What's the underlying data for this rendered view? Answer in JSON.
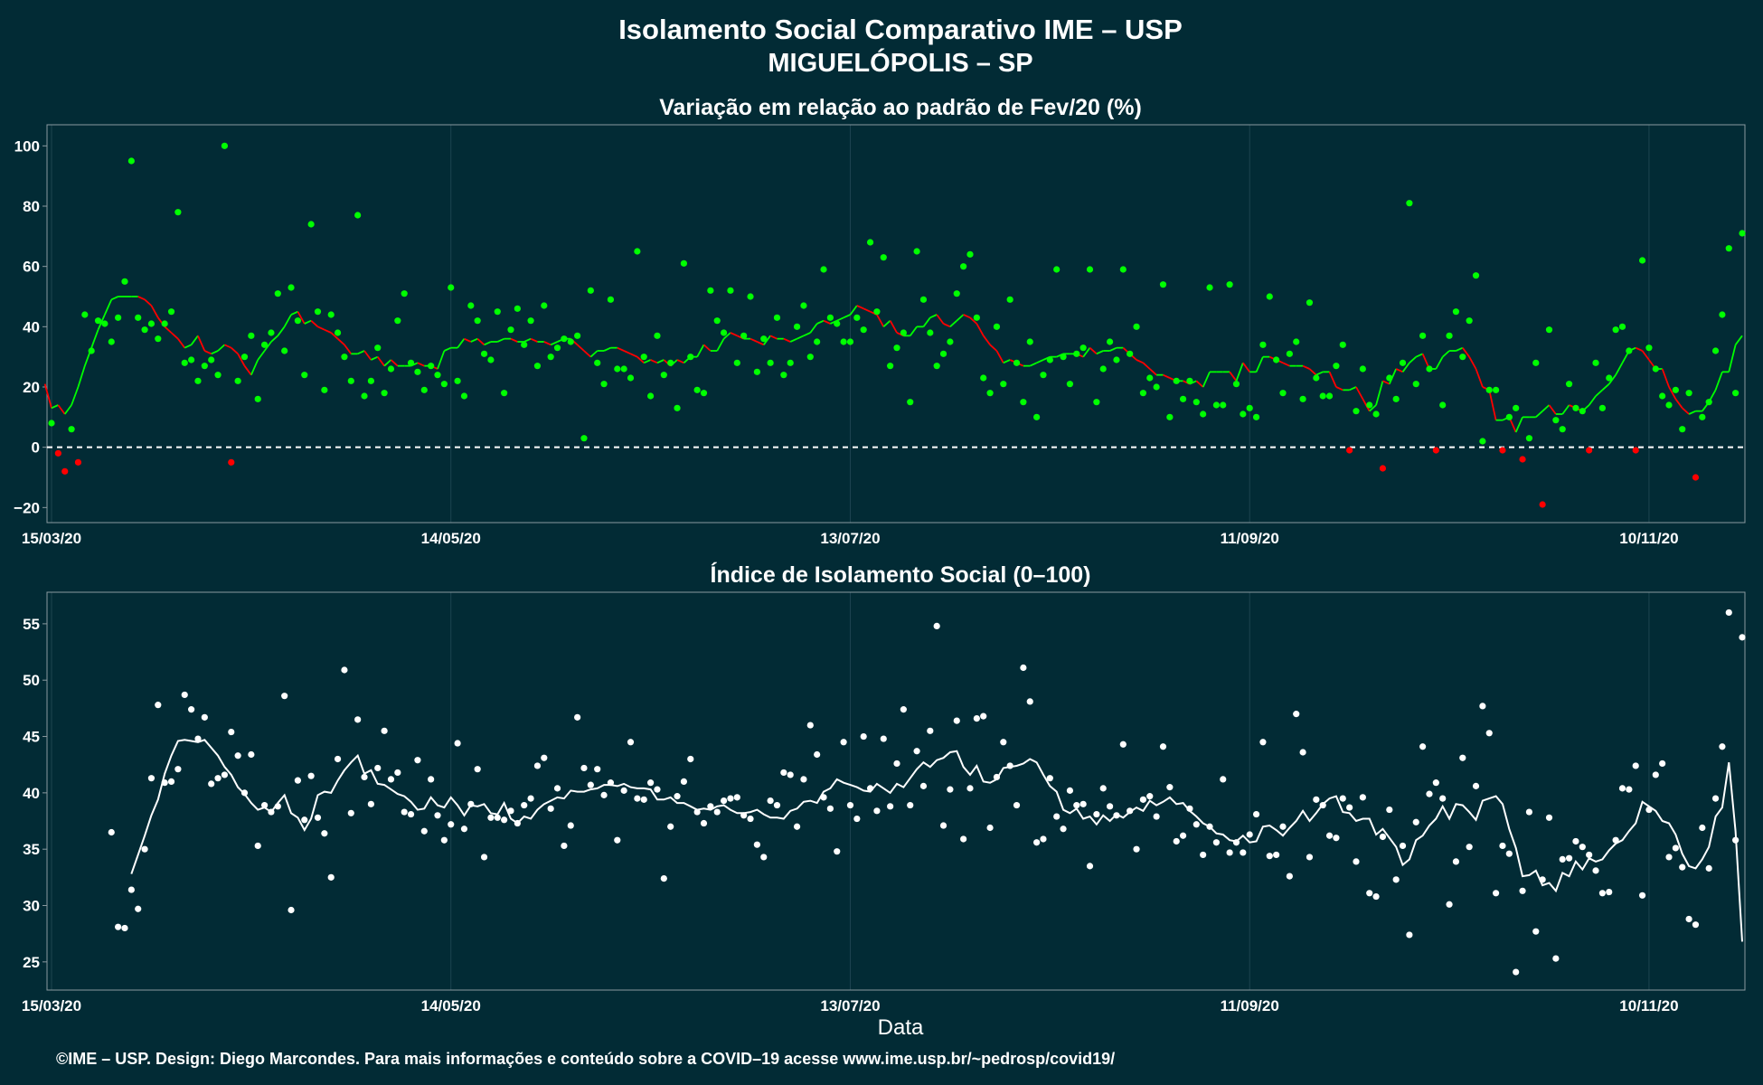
{
  "header": {
    "title": "Isolamento Social Comparativo IME – USP",
    "subtitle": "MIGUELÓPOLIS – SP"
  },
  "xlabel": "Data",
  "footer": "©IME – USP. Design: Diego Marcondes. Para mais informações e conteúdo sobre a COVID–19 acesse www.ime.usp.br/~pedrosp/covid19/",
  "colors": {
    "background": "#022b35",
    "positive": "#00ff00",
    "negative": "#ff0000",
    "index": "#ffffff",
    "reference_line": "#ffffff"
  },
  "chart_data": [
    {
      "type": "scatter",
      "title": "Variação em relação ao padrão de Fev/20 (%)",
      "x_start": "2020-03-15",
      "x_end": "2020-11-24",
      "x_ticks": [
        "15/03/20",
        "14/05/20",
        "13/07/20",
        "11/09/20",
        "10/11/20"
      ],
      "ylim": [
        -25,
        107
      ],
      "y_ticks": [
        "−20",
        "0",
        "20",
        "40",
        "60",
        "80",
        "100"
      ],
      "reference_line_y": 0,
      "series": [
        {
          "values": [
            8,
            -2,
            -8,
            6,
            -5,
            44,
            32,
            42,
            41,
            35,
            43,
            55,
            95,
            43,
            39,
            41,
            36,
            41,
            45,
            78,
            28,
            29,
            22,
            27,
            29,
            24,
            100,
            -5,
            22,
            30,
            37,
            16,
            34,
            38,
            51,
            32,
            53,
            42,
            24,
            74,
            45,
            19,
            44,
            38,
            30,
            22,
            77,
            17,
            22,
            33,
            18,
            26,
            42,
            51,
            28,
            25,
            19,
            27,
            24,
            21,
            53,
            22,
            17,
            47,
            42,
            31,
            29,
            45,
            18,
            39,
            46,
            34,
            42,
            27,
            47,
            30,
            33,
            36,
            35,
            37,
            3,
            52,
            28,
            21,
            49,
            26,
            26,
            23,
            65,
            30,
            17,
            37,
            24,
            28,
            13,
            61,
            30,
            19,
            18,
            52,
            42,
            38,
            52,
            28,
            37,
            50,
            25,
            36,
            28,
            43,
            24,
            28,
            40,
            47,
            30,
            35,
            59,
            43,
            41,
            35,
            35,
            43,
            39,
            68,
            45,
            63,
            27,
            33,
            38,
            15,
            65,
            49,
            38,
            27,
            31,
            35,
            51,
            60,
            64,
            43,
            23,
            18,
            40,
            21,
            49,
            28,
            15,
            35,
            10,
            24,
            29,
            59,
            30,
            21,
            31,
            33,
            59,
            15,
            26,
            35,
            29,
            59,
            31,
            40,
            18,
            23,
            20,
            54,
            10,
            22,
            16,
            22,
            15,
            11,
            53,
            14,
            14,
            54,
            21,
            11,
            13,
            10,
            34,
            50,
            29,
            18,
            31,
            35,
            16,
            48,
            23,
            17,
            17,
            27,
            34,
            -1,
            12,
            26,
            14,
            11,
            -7,
            23,
            16,
            28,
            81,
            21,
            37,
            26,
            -1,
            14,
            37,
            45,
            30,
            42,
            57,
            2,
            19,
            19,
            -1,
            10,
            13,
            -4,
            3,
            28,
            -19,
            39,
            9,
            6,
            21,
            13,
            12,
            -1,
            28,
            13,
            23,
            39,
            40,
            32,
            -1,
            62,
            33,
            26,
            17,
            14,
            19,
            6,
            18,
            -10,
            10,
            15,
            32,
            44,
            66,
            18,
            71
          ]
        }
      ],
      "moving_average": [
        21,
        13,
        14,
        11,
        14,
        20,
        27,
        33,
        39,
        44,
        49,
        50,
        50,
        50,
        50,
        49,
        47,
        43,
        40,
        38,
        36,
        33,
        34,
        37,
        32,
        31,
        32,
        34,
        33,
        31,
        27,
        24,
        29,
        32,
        35,
        37,
        40,
        44,
        45,
        41,
        42,
        40,
        39,
        38,
        36,
        34,
        31,
        31,
        32,
        29,
        30,
        27,
        29,
        27,
        27,
        27,
        28,
        27,
        27,
        26,
        32,
        33,
        33,
        36,
        35,
        36,
        34,
        35,
        35,
        36,
        36,
        35,
        35,
        36,
        35,
        35,
        34,
        35,
        36,
        36,
        34,
        32,
        30,
        32,
        32,
        33,
        33,
        32,
        31,
        30,
        28,
        29,
        28,
        29,
        27,
        29,
        28,
        30,
        30,
        34,
        32,
        32,
        36,
        38,
        37,
        36,
        36,
        35,
        34,
        37,
        36,
        36,
        35,
        36,
        37,
        38,
        41,
        42,
        41,
        42,
        43,
        44,
        47,
        46,
        45,
        44,
        40,
        42,
        38,
        37,
        37,
        40,
        40,
        43,
        44,
        41,
        40,
        42,
        44,
        43,
        41,
        37,
        34,
        32,
        28,
        29,
        28,
        27,
        27,
        28,
        29,
        30,
        30,
        31,
        31,
        31,
        30,
        33,
        31,
        32,
        32,
        33,
        33,
        31,
        29,
        28,
        26,
        24,
        24,
        23,
        22,
        22,
        21,
        22,
        20,
        25,
        25,
        25,
        25,
        22,
        28,
        25,
        25,
        30,
        30,
        29,
        28,
        27,
        27,
        27,
        26,
        24,
        25,
        25,
        20,
        19,
        19,
        20,
        16,
        12,
        14,
        22,
        21,
        26,
        25,
        28,
        30,
        31,
        26,
        26,
        30,
        32,
        32,
        33,
        30,
        26,
        20,
        19,
        9,
        9,
        10,
        5,
        10,
        10,
        10,
        12,
        14,
        11,
        11,
        14,
        13,
        12,
        14,
        17,
        19,
        21,
        24,
        28,
        32,
        33,
        32,
        29,
        26,
        26,
        20,
        16,
        13,
        11,
        12,
        12,
        15,
        19,
        25,
        25,
        34,
        37
      ]
    },
    {
      "type": "scatter",
      "title": "Índice de Isolamento Social (0–100)",
      "x_start": "2020-03-15",
      "x_end": "2020-11-24",
      "x_ticks": [
        "15/03/20",
        "14/05/20",
        "13/07/20",
        "11/09/20",
        "10/11/20"
      ],
      "ylim": [
        22.5,
        57.8
      ],
      "y_ticks": [
        "25",
        "30",
        "35",
        "40",
        "45",
        "50",
        "55"
      ],
      "series": [
        {
          "values": [
            36.5,
            28.1,
            28.0,
            31.4,
            29.7,
            35.0,
            41.3,
            47.8,
            40.9,
            41.0,
            42.1,
            48.7,
            47.4,
            44.8,
            46.7,
            40.8,
            41.3,
            41.6,
            45.4,
            43.3,
            40.0,
            43.4,
            35.3,
            38.9,
            38.3,
            38.8,
            48.6,
            29.6,
            41.1,
            37.6,
            41.5,
            37.8,
            36.4,
            32.5,
            43.0,
            50.9,
            38.2,
            46.5,
            41.4,
            39.0,
            42.2,
            45.5,
            41.2,
            41.8,
            38.3,
            38.1,
            42.9,
            36.6,
            41.2,
            38.0,
            35.8,
            37.2,
            44.4,
            36.8,
            39.0,
            42.1,
            34.3,
            37.8,
            37.8,
            37.6,
            38.4,
            37.3,
            38.9,
            39.5,
            42.4,
            43.1,
            38.6,
            40.4,
            35.3,
            37.1,
            46.7,
            42.2,
            40.7,
            42.1,
            39.8,
            40.9,
            35.8,
            40.2,
            44.5,
            39.5,
            39.4,
            40.9,
            40.3,
            32.4,
            37.0,
            39.7,
            41.0,
            43.0,
            38.3,
            37.3,
            38.8,
            38.3,
            39.3,
            39.5,
            39.6,
            38.0,
            37.7,
            35.4,
            34.3,
            39.3,
            38.9,
            41.8,
            41.6,
            37.0,
            41.2,
            46.0,
            43.4,
            39.6,
            38.6,
            34.8,
            44.5,
            38.9,
            37.7,
            45.0,
            40.4,
            38.4,
            44.8,
            38.8,
            42.6,
            47.4,
            38.9,
            43.7,
            40.6,
            45.5,
            54.8,
            37.1,
            40.3,
            46.4,
            35.9,
            40.4,
            46.6,
            46.8,
            36.9,
            41.4,
            44.5,
            42.4,
            38.9,
            51.1,
            48.1,
            35.6,
            35.9,
            41.3,
            37.9,
            36.8,
            40.2,
            38.9,
            39.0,
            33.5,
            38.1,
            40.4,
            38.8,
            38.0,
            44.3,
            38.4,
            35.0,
            39.4,
            39.7,
            37.9,
            44.1,
            40.5,
            35.7,
            36.2,
            38.6,
            37.2,
            34.5,
            37.0,
            35.6,
            41.2,
            34.7,
            35.6,
            34.7,
            36.3,
            38.1,
            44.5,
            34.4,
            34.5,
            37.0,
            32.6,
            47.0,
            43.6,
            34.3,
            39.4,
            38.9,
            36.2,
            36.0,
            39.5,
            38.7,
            33.9,
            39.6,
            31.1,
            30.8,
            36.1,
            38.5,
            32.3,
            35.3,
            27.4,
            37.4,
            44.1,
            39.9,
            40.9,
            39.5,
            30.1,
            33.9,
            43.1,
            35.2,
            40.6,
            47.7,
            45.3,
            31.1,
            35.3,
            34.6,
            24.1,
            31.3,
            38.3,
            27.7,
            32.3,
            37.8,
            25.3,
            34.1,
            34.2,
            35.7,
            35.2,
            34.5,
            33.1,
            31.1,
            31.2,
            35.8,
            40.4,
            40.3,
            42.4,
            30.9,
            38.5,
            41.6,
            42.6,
            34.3,
            35.1,
            33.4,
            28.8,
            28.3,
            36.9,
            33.3,
            39.5,
            44.1,
            56.0,
            35.8,
            53.8
          ]
        }
      ],
      "moving_average": [
        32.8,
        34.5,
        36.2,
        38.0,
        39.4,
        41.7,
        43.3,
        44.6,
        44.7,
        44.6,
        44.5,
        44.7,
        44.0,
        43.3,
        42.3,
        41.6,
        40.5,
        39.9,
        39.1,
        38.5,
        38.7,
        38.3,
        39.1,
        39.8,
        38.2,
        37.8,
        36.7,
        37.7,
        39.8,
        40.1,
        40.0,
        41.1,
        42.0,
        42.7,
        43.3,
        41.7,
        42.0,
        40.8,
        40.7,
        40.3,
        39.9,
        39.7,
        39.2,
        38.5,
        38.6,
        39.6,
        38.9,
        38.7,
        39.6,
        38.9,
        38.0,
        38.9,
        38.8,
        39.0,
        38.2,
        38.1,
        39.1,
        37.7,
        37.3,
        37.9,
        37.7,
        38.5,
        39.0,
        39.3,
        39.6,
        39.5,
        40.2,
        40.1,
        40.1,
        40.3,
        40.4,
        40.7,
        40.7,
        40.6,
        40.8,
        40.5,
        40.4,
        40.4,
        40.3,
        39.4,
        39.4,
        39.6,
        39.1,
        39.1,
        38.8,
        38.5,
        38.6,
        38.5,
        38.8,
        38.9,
        38.5,
        38.2,
        38.2,
        38.3,
        38.5,
        38.1,
        37.8,
        37.8,
        37.7,
        38.4,
        38.6,
        39.2,
        39.3,
        39.1,
        40.1,
        40.4,
        41.2,
        40.9,
        40.7,
        40.5,
        40.2,
        40.1,
        40.8,
        40.4,
        40.0,
        40.8,
        40.5,
        41.3,
        42.1,
        42.7,
        42.3,
        42.9,
        43.1,
        43.6,
        43.7,
        42.3,
        41.6,
        42.4,
        41.0,
        40.9,
        41.2,
        42.2,
        42.3,
        42.4,
        42.6,
        43.0,
        42.7,
        41.6,
        40.6,
        40.1,
        38.5,
        38.2,
        38.6,
        37.7,
        37.9,
        37.2,
        38.0,
        37.5,
        38.1,
        37.8,
        38.3,
        38.7,
        38.4,
        39.3,
        38.9,
        39.2,
        39.6,
        39.0,
        39.1,
        38.4,
        37.9,
        37.3,
        37.0,
        36.4,
        36.3,
        35.8,
        35.7,
        36.2,
        35.6,
        35.7,
        37.0,
        37.1,
        36.7,
        36.2,
        36.9,
        37.5,
        38.4,
        37.5,
        38.2,
        39.0,
        39.5,
        39.7,
        38.3,
        38.2,
        37.5,
        37.7,
        37.7,
        36.3,
        36.8,
        36.0,
        35.2,
        33.6,
        34.1,
        35.8,
        36.2,
        37.1,
        37.7,
        38.8,
        37.7,
        39.0,
        38.9,
        38.3,
        37.6,
        39.3,
        39.5,
        39.7,
        39.0,
        36.8,
        35.1,
        32.6,
        32.7,
        33.1,
        31.8,
        32.0,
        31.3,
        32.9,
        32.6,
        33.9,
        33.2,
        34.2,
        33.9,
        34.1,
        34.9,
        35.5,
        35.8,
        36.6,
        37.3,
        39.2,
        38.8,
        38.4,
        37.5,
        37.3,
        36.3,
        34.6,
        33.5,
        33.3,
        34.1,
        35.2,
        37.9,
        38.7,
        42.7,
        36.6,
        26.8
      ]
    }
  ]
}
